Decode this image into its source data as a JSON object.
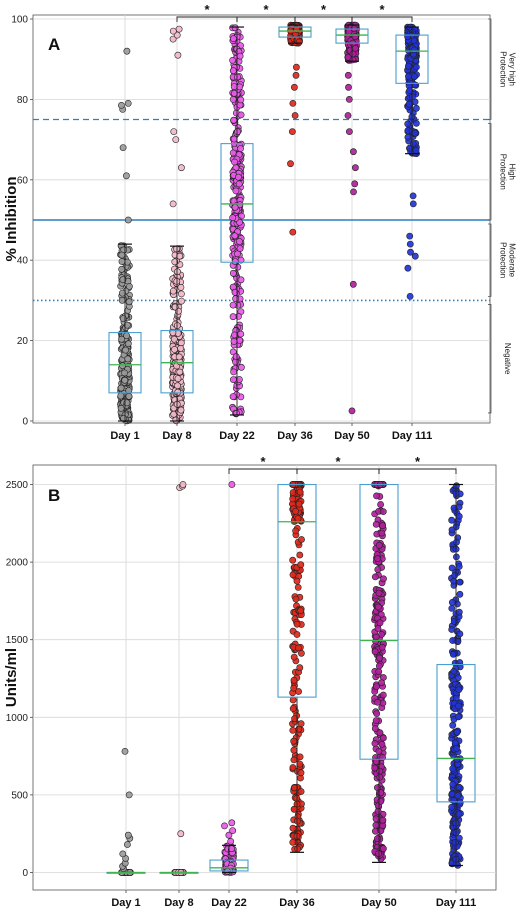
{
  "chart_data": [
    {
      "type": "box-strip",
      "panel_label": "A",
      "title": "",
      "xlabel": "",
      "ylabel": "% Inhibition",
      "categories": [
        "Day 1",
        "Day 8",
        "Day 22",
        "Day 36",
        "Day 50",
        "Day 111"
      ],
      "ylim": [
        0,
        100
      ],
      "yticks": [
        0,
        20,
        40,
        60,
        80,
        100
      ],
      "grid": true,
      "colors": [
        "#9a9a9a",
        "#f2b8c8",
        "#e85ae8",
        "#e0281c",
        "#b0209c",
        "#2333d6"
      ],
      "boxes": [
        {
          "q1": 7,
          "median": 14,
          "q3": 22,
          "whisker_low": 0,
          "whisker_high": 44,
          "point_count": 260
        },
        {
          "q1": 7,
          "median": 14.5,
          "q3": 22.5,
          "whisker_low": 0,
          "whisker_high": 43.5,
          "point_count": 230
        },
        {
          "q1": 39.5,
          "median": 54,
          "q3": 69,
          "whisker_low": 1.5,
          "whisker_high": 98,
          "point_count": 330
        },
        {
          "q1": 95.5,
          "median": 97,
          "q3": 98,
          "whisker_low": 94,
          "whisker_high": 98.5,
          "point_count": 230
        },
        {
          "q1": 94,
          "median": 96,
          "q3": 97.5,
          "whisker_low": 89.5,
          "whisker_high": 98.5,
          "point_count": 250
        },
        {
          "q1": 84,
          "median": 92,
          "q3": 96,
          "whisker_low": 66.5,
          "whisker_high": 98,
          "point_count": 220
        }
      ],
      "outliers": [
        [
          50,
          61,
          68,
          77.5,
          78.5,
          79,
          92
        ],
        [
          54,
          63,
          70,
          72,
          91,
          95,
          96,
          97,
          97.5
        ],
        [],
        [
          47,
          64,
          72,
          76,
          79,
          83,
          86,
          88
        ],
        [
          2.5,
          34,
          57,
          59,
          63,
          67,
          72,
          76,
          80,
          83,
          86
        ],
        [
          31,
          38,
          41,
          42,
          44,
          46,
          54,
          56
        ]
      ],
      "reference_lines": [
        {
          "value": 75,
          "style": "dashed"
        },
        {
          "value": 50,
          "style": "solid"
        },
        {
          "value": 30,
          "style": "dotted"
        }
      ],
      "zones": [
        {
          "label_lines": [
            "Very high",
            "Protection"
          ],
          "from": 75,
          "to": 100
        },
        {
          "label_lines": [
            "High",
            "Protection"
          ],
          "from": 50,
          "to": 74
        },
        {
          "label_lines": [
            "Moderate",
            "Protection"
          ],
          "from": 31,
          "to": 49
        },
        {
          "label_lines": [
            "Negative"
          ],
          "from": 2,
          "to": 29
        }
      ],
      "significance": [
        {
          "from": "Day 8",
          "to": "Day 22",
          "label": "*"
        },
        {
          "from": "Day 22",
          "to": "Day 36",
          "label": "*"
        },
        {
          "from": "Day 36",
          "to": "Day 50",
          "label": "*"
        },
        {
          "from": "Day 50",
          "to": "Day 111",
          "label": "*"
        }
      ]
    },
    {
      "type": "box-strip",
      "panel_label": "B",
      "title": "",
      "xlabel": "",
      "ylabel": "Units/ml",
      "categories": [
        "Day 1",
        "Day 8",
        "Day 22",
        "Day 36",
        "Day 50",
        "Day 111"
      ],
      "ylim": [
        -100,
        2600
      ],
      "yticks": [
        0,
        500,
        1000,
        1500,
        2000,
        2500
      ],
      "grid": true,
      "colors": [
        "#9a9a9a",
        "#f2b8c8",
        "#e85ae8",
        "#e0281c",
        "#b0209c",
        "#2333d6"
      ],
      "boxes": [
        {
          "q1": 0,
          "median": 0,
          "q3": 0,
          "whisker_low": 0,
          "whisker_high": 0,
          "point_count": 70
        },
        {
          "q1": 0,
          "median": 0,
          "q3": 0,
          "whisker_low": 0,
          "whisker_high": 0,
          "point_count": 45
        },
        {
          "q1": 10,
          "median": 30,
          "q3": 80,
          "whisker_low": 0,
          "whisker_high": 175,
          "point_count": 110
        },
        {
          "q1": 1130,
          "median": 2260,
          "q3": 2500,
          "whisker_low": 130,
          "whisker_high": 2500,
          "point_count": 300
        },
        {
          "q1": 730,
          "median": 1495,
          "q3": 2500,
          "whisker_low": 65,
          "whisker_high": 2500,
          "point_count": 300
        },
        {
          "q1": 455,
          "median": 735,
          "q3": 1340,
          "whisker_low": 45,
          "whisker_high": 2500,
          "point_count": 270
        }
      ],
      "outliers": [
        [
          25,
          40,
          60,
          90,
          120,
          180,
          220,
          240,
          500,
          780
        ],
        [
          2480,
          2490,
          2500,
          250
        ],
        [
          200,
          240,
          270,
          300,
          320,
          2500
        ],
        [],
        [],
        []
      ],
      "reference_lines": [],
      "zones": [],
      "significance": [
        {
          "from": "Day 22",
          "to": "Day 36",
          "label": "*"
        },
        {
          "from": "Day 36",
          "to": "Day 50",
          "label": "*"
        },
        {
          "from": "Day 50",
          "to": "Day 111",
          "label": "*"
        }
      ]
    }
  ]
}
